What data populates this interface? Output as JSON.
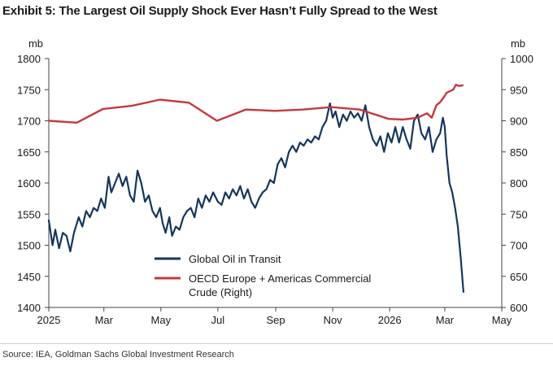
{
  "title": "Exhibit 5: The Largest Oil Supply Shock Ever Hasn’t Fully Spread to the West",
  "source": "Source: IEA, Goldman Sachs Global Investment Research",
  "colors": {
    "left_series": "#14365d",
    "right_series": "#c5393f"
  },
  "chart_data": {
    "type": "line",
    "x_tick_labels": [
      "2025",
      "Mar",
      "May",
      "Jul",
      "Sep",
      "Nov",
      "2026",
      "Mar",
      "May"
    ],
    "xlim": [
      "2025-01-01",
      "2026-05-01"
    ],
    "y_left": {
      "label": "mb",
      "lim": [
        1400,
        1800
      ],
      "ticks": [
        "1400",
        "1450",
        "1500",
        "1550",
        "1600",
        "1650",
        "1700",
        "1750",
        "1800"
      ]
    },
    "y_right": {
      "label": "mb",
      "lim": [
        600,
        1000
      ],
      "ticks": [
        "600",
        "650",
        "700",
        "750",
        "800",
        "850",
        "900",
        "950",
        "1000"
      ]
    },
    "legend_position": "lower-center",
    "series": [
      {
        "name": "Global Oil in Transit",
        "axis": "left",
        "color": "#14365d",
        "points": [
          [
            "2025-01-01",
            1540
          ],
          [
            "2025-01-05",
            1500
          ],
          [
            "2025-01-08",
            1525
          ],
          [
            "2025-01-12",
            1495
          ],
          [
            "2025-01-16",
            1520
          ],
          [
            "2025-01-20",
            1515
          ],
          [
            "2025-01-24",
            1490
          ],
          [
            "2025-01-28",
            1520
          ],
          [
            "2025-02-02",
            1545
          ],
          [
            "2025-02-06",
            1530
          ],
          [
            "2025-02-10",
            1555
          ],
          [
            "2025-02-14",
            1545
          ],
          [
            "2025-02-18",
            1560
          ],
          [
            "2025-02-22",
            1555
          ],
          [
            "2025-02-26",
            1575
          ],
          [
            "2025-03-02",
            1560
          ],
          [
            "2025-03-06",
            1610
          ],
          [
            "2025-03-09",
            1585
          ],
          [
            "2025-03-13",
            1600
          ],
          [
            "2025-03-17",
            1615
          ],
          [
            "2025-03-21",
            1595
          ],
          [
            "2025-03-25",
            1610
          ],
          [
            "2025-03-29",
            1580
          ],
          [
            "2025-04-02",
            1570
          ],
          [
            "2025-04-06",
            1620
          ],
          [
            "2025-04-10",
            1600
          ],
          [
            "2025-04-14",
            1570
          ],
          [
            "2025-04-18",
            1580
          ],
          [
            "2025-04-22",
            1555
          ],
          [
            "2025-04-26",
            1545
          ],
          [
            "2025-04-30",
            1560
          ],
          [
            "2025-05-03",
            1535
          ],
          [
            "2025-05-06",
            1520
          ],
          [
            "2025-05-10",
            1545
          ],
          [
            "2025-05-13",
            1515
          ],
          [
            "2025-05-17",
            1530
          ],
          [
            "2025-05-21",
            1525
          ],
          [
            "2025-05-25",
            1545
          ],
          [
            "2025-05-29",
            1555
          ],
          [
            "2025-06-02",
            1560
          ],
          [
            "2025-06-06",
            1545
          ],
          [
            "2025-06-10",
            1575
          ],
          [
            "2025-06-14",
            1560
          ],
          [
            "2025-06-18",
            1580
          ],
          [
            "2025-06-22",
            1570
          ],
          [
            "2025-06-26",
            1585
          ],
          [
            "2025-07-01",
            1570
          ],
          [
            "2025-07-05",
            1565
          ],
          [
            "2025-07-09",
            1585
          ],
          [
            "2025-07-13",
            1575
          ],
          [
            "2025-07-17",
            1590
          ],
          [
            "2025-07-21",
            1580
          ],
          [
            "2025-07-25",
            1595
          ],
          [
            "2025-07-29",
            1575
          ],
          [
            "2025-08-02",
            1590
          ],
          [
            "2025-08-06",
            1570
          ],
          [
            "2025-08-10",
            1560
          ],
          [
            "2025-08-14",
            1575
          ],
          [
            "2025-08-18",
            1585
          ],
          [
            "2025-08-22",
            1590
          ],
          [
            "2025-08-26",
            1605
          ],
          [
            "2025-08-30",
            1600
          ],
          [
            "2025-09-03",
            1630
          ],
          [
            "2025-09-07",
            1640
          ],
          [
            "2025-09-11",
            1625
          ],
          [
            "2025-09-15",
            1650
          ],
          [
            "2025-09-19",
            1660
          ],
          [
            "2025-09-23",
            1650
          ],
          [
            "2025-09-27",
            1665
          ],
          [
            "2025-10-01",
            1660
          ],
          [
            "2025-10-05",
            1670
          ],
          [
            "2025-10-09",
            1665
          ],
          [
            "2025-10-13",
            1675
          ],
          [
            "2025-10-17",
            1670
          ],
          [
            "2025-10-21",
            1690
          ],
          [
            "2025-10-25",
            1700
          ],
          [
            "2025-10-29",
            1728
          ],
          [
            "2025-11-01",
            1705
          ],
          [
            "2025-11-04",
            1715
          ],
          [
            "2025-11-08",
            1690
          ],
          [
            "2025-11-12",
            1710
          ],
          [
            "2025-11-16",
            1700
          ],
          [
            "2025-11-20",
            1715
          ],
          [
            "2025-11-24",
            1705
          ],
          [
            "2025-11-28",
            1712
          ],
          [
            "2025-12-02",
            1700
          ],
          [
            "2025-12-06",
            1725
          ],
          [
            "2025-12-10",
            1690
          ],
          [
            "2025-12-14",
            1670
          ],
          [
            "2025-12-18",
            1660
          ],
          [
            "2025-12-22",
            1675
          ],
          [
            "2025-12-26",
            1650
          ],
          [
            "2025-12-30",
            1680
          ],
          [
            "2026-01-03",
            1665
          ],
          [
            "2026-01-07",
            1690
          ],
          [
            "2026-01-11",
            1665
          ],
          [
            "2026-01-15",
            1690
          ],
          [
            "2026-01-19",
            1670
          ],
          [
            "2026-01-23",
            1655
          ],
          [
            "2026-01-27",
            1700
          ],
          [
            "2026-01-31",
            1710
          ],
          [
            "2026-02-04",
            1680
          ],
          [
            "2026-02-08",
            1670
          ],
          [
            "2026-02-12",
            1690
          ],
          [
            "2026-02-16",
            1650
          ],
          [
            "2026-02-20",
            1670
          ],
          [
            "2026-02-24",
            1680
          ],
          [
            "2026-02-27",
            1705
          ],
          [
            "2026-03-01",
            1690
          ],
          [
            "2026-03-03",
            1645
          ],
          [
            "2026-03-06",
            1600
          ],
          [
            "2026-03-09",
            1585
          ],
          [
            "2026-03-12",
            1560
          ],
          [
            "2026-03-15",
            1530
          ],
          [
            "2026-03-18",
            1480
          ],
          [
            "2026-03-21",
            1425
          ]
        ]
      },
      {
        "name": "OECD Europe + Americas Commercial Crude (Right)",
        "axis": "right",
        "color": "#c5393f",
        "points": [
          [
            "2025-01-01",
            900
          ],
          [
            "2025-01-31",
            897
          ],
          [
            "2025-02-28",
            919
          ],
          [
            "2025-03-31",
            924
          ],
          [
            "2025-04-30",
            934
          ],
          [
            "2025-05-31",
            929
          ],
          [
            "2025-06-30",
            900
          ],
          [
            "2025-07-31",
            918
          ],
          [
            "2025-08-31",
            916
          ],
          [
            "2025-09-30",
            918
          ],
          [
            "2025-10-31",
            922
          ],
          [
            "2025-11-30",
            918
          ],
          [
            "2025-12-31",
            903
          ],
          [
            "2026-01-15",
            902
          ],
          [
            "2026-01-31",
            905
          ],
          [
            "2026-02-10",
            912
          ],
          [
            "2026-02-15",
            905
          ],
          [
            "2026-02-20",
            925
          ],
          [
            "2026-02-24",
            930
          ],
          [
            "2026-02-28",
            938
          ],
          [
            "2026-03-03",
            945
          ],
          [
            "2026-03-07",
            948
          ],
          [
            "2026-03-10",
            950
          ],
          [
            "2026-03-13",
            958
          ],
          [
            "2026-03-16",
            956
          ],
          [
            "2026-03-20",
            957
          ]
        ]
      }
    ]
  }
}
